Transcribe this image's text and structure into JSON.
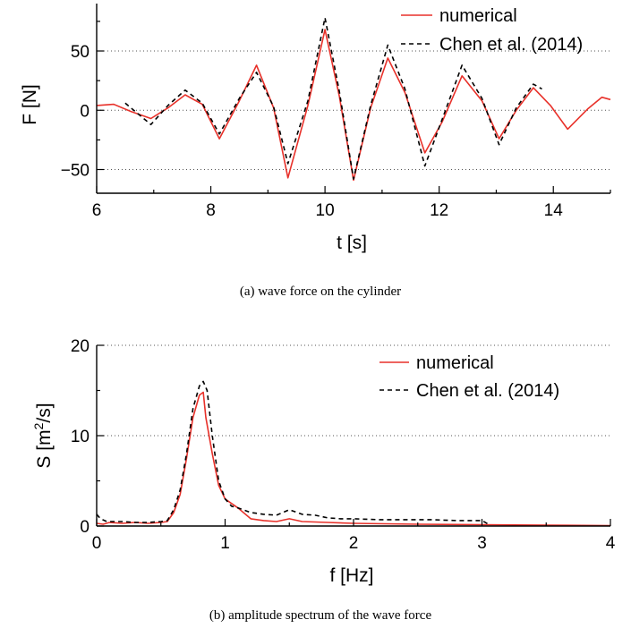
{
  "colors": {
    "numerical": "#e8312a",
    "reference": "#000000",
    "grid": "#555555"
  },
  "chart_data": [
    {
      "type": "line",
      "caption": "(a) wave force on the cylinder",
      "xlabel": "t [s]",
      "ylabel": "F [N]",
      "xlim": [
        6,
        15
      ],
      "ylim": [
        -70,
        90
      ],
      "xticks": [
        6,
        8,
        10,
        12,
        14
      ],
      "yticks": [
        -50,
        0,
        50
      ],
      "yticklabels": [
        "−50",
        "0",
        "50"
      ],
      "grid": "horizontal dotted",
      "legend_position": "top-right",
      "series": [
        {
          "name": "numerical",
          "style": "solid",
          "x": [
            6.0,
            6.3,
            6.6,
            6.95,
            7.25,
            7.55,
            7.85,
            8.15,
            8.5,
            8.8,
            9.1,
            9.35,
            9.7,
            10.0,
            10.25,
            10.5,
            10.8,
            11.1,
            11.4,
            11.75,
            12.05,
            12.4,
            12.75,
            13.05,
            13.35,
            13.65,
            13.95,
            14.25,
            14.6,
            14.85,
            15.0
          ],
          "y": [
            4,
            5,
            -1,
            -7,
            2,
            13,
            5,
            -24,
            8,
            38,
            2,
            -57,
            4,
            68,
            12,
            -59,
            2,
            44,
            15,
            -36,
            -10,
            29,
            8,
            -24,
            0,
            19,
            4,
            -16,
            1,
            11,
            9
          ]
        },
        {
          "name": "Chen et al. (2014)",
          "style": "dashed",
          "x": [
            6.5,
            6.95,
            7.25,
            7.55,
            7.85,
            8.15,
            8.5,
            8.8,
            9.1,
            9.35,
            9.7,
            10.0,
            10.25,
            10.5,
            10.8,
            11.1,
            11.4,
            11.75,
            12.05,
            12.4,
            12.75,
            13.05,
            13.35,
            13.65,
            13.8
          ],
          "y": [
            6,
            -12,
            4,
            17,
            6,
            -20,
            10,
            32,
            3,
            -45,
            8,
            78,
            16,
            -58,
            4,
            55,
            18,
            -47,
            -8,
            38,
            10,
            -29,
            2,
            22,
            18
          ]
        }
      ]
    },
    {
      "type": "line",
      "caption": "(b) amplitude spectrum of the wave force",
      "xlabel": "f [Hz]",
      "ylabel_main": "S [m",
      "ylabel_sup": "2",
      "ylabel_tail": "/s]",
      "xlim": [
        0,
        4
      ],
      "ylim": [
        0,
        20
      ],
      "xticks": [
        0,
        1,
        2,
        3,
        4
      ],
      "yticks": [
        0,
        10,
        20
      ],
      "yticklabels": [
        "0",
        "10",
        "20"
      ],
      "grid": "horizontal dotted",
      "legend_position": "top-right",
      "series": [
        {
          "name": "numerical",
          "style": "solid",
          "x": [
            0.0,
            0.05,
            0.1,
            0.2,
            0.3,
            0.4,
            0.5,
            0.55,
            0.6,
            0.65,
            0.7,
            0.75,
            0.8,
            0.83,
            0.85,
            0.9,
            0.95,
            1.0,
            1.05,
            1.1,
            1.2,
            1.3,
            1.4,
            1.5,
            1.6,
            1.8,
            2.0,
            2.5,
            3.0,
            3.5,
            4.0
          ],
          "y": [
            0.3,
            0.2,
            0.4,
            0.3,
            0.4,
            0.3,
            0.4,
            0.5,
            1.5,
            3.5,
            7.5,
            12.0,
            14.5,
            14.8,
            12.0,
            8.0,
            4.5,
            3.0,
            2.5,
            2.0,
            0.8,
            0.6,
            0.5,
            0.8,
            0.5,
            0.4,
            0.3,
            0.2,
            0.15,
            0.1,
            0.05
          ]
        },
        {
          "name": "Chen et al. (2014)",
          "style": "dashed",
          "x": [
            0.0,
            0.03,
            0.08,
            0.2,
            0.3,
            0.4,
            0.5,
            0.55,
            0.6,
            0.65,
            0.7,
            0.75,
            0.8,
            0.83,
            0.86,
            0.9,
            0.95,
            1.0,
            1.05,
            1.1,
            1.2,
            1.3,
            1.4,
            1.5,
            1.6,
            1.7,
            1.8,
            1.9,
            2.0,
            2.2,
            2.4,
            2.6,
            2.8,
            3.0,
            3.05
          ],
          "y": [
            1.3,
            0.8,
            0.5,
            0.5,
            0.4,
            0.4,
            0.5,
            0.6,
            1.8,
            4.0,
            8.0,
            13.0,
            15.5,
            16.0,
            15.0,
            10.0,
            5.0,
            3.0,
            2.2,
            2.0,
            1.5,
            1.3,
            1.2,
            1.8,
            1.3,
            1.2,
            0.9,
            0.8,
            0.8,
            0.7,
            0.7,
            0.7,
            0.6,
            0.6,
            0.2
          ]
        }
      ]
    }
  ]
}
